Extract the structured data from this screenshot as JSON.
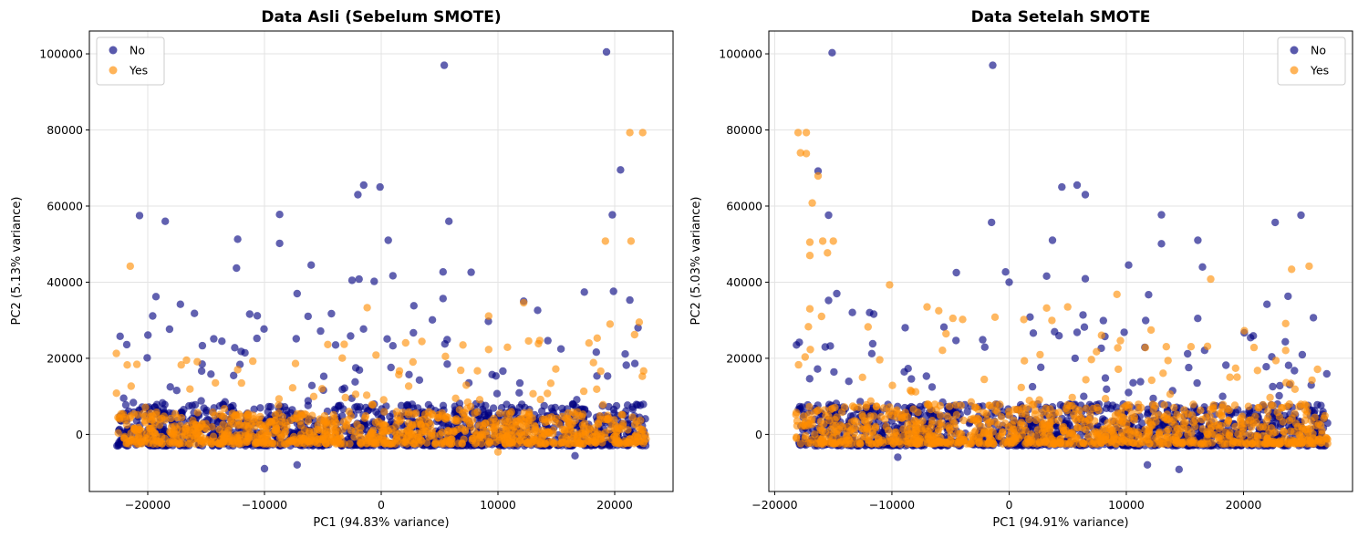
{
  "colors": {
    "No": "#000080",
    "Yes": "#ff8c00",
    "grid": "#e3e3e3",
    "axis": "#000000"
  },
  "chart_data": [
    {
      "type": "scatter",
      "title": "Data Asli (Sebelum SMOTE)",
      "xlabel": "PC1 (94.83% variance)",
      "ylabel": "PC2 (5.13% variance)",
      "xlim": [
        -25000,
        25000
      ],
      "ylim": [
        -15000,
        106000
      ],
      "xticks": [
        -20000,
        -10000,
        0,
        10000,
        20000
      ],
      "yticks": [
        0,
        20000,
        40000,
        60000,
        80000,
        100000
      ],
      "grid": true,
      "legend_position": "upper-left",
      "legend": [
        "No",
        "Yes"
      ],
      "series": [
        {
          "name": "No",
          "color": "#000080",
          "x_range": [
            -22700,
            22700
          ],
          "dense_band_y": [
            -3000,
            8000
          ],
          "outliers": [
            [
              19300,
              100500
            ],
            [
              5400,
              97000
            ],
            [
              20500,
              69500
            ],
            [
              -1500,
              65500
            ],
            [
              -100,
              65000
            ],
            [
              -2000,
              63000
            ],
            [
              5800,
              56000
            ],
            [
              -8700,
              57800
            ],
            [
              -20700,
              57500
            ],
            [
              -18500,
              56000
            ],
            [
              19800,
              57700
            ],
            [
              -12300,
              51300
            ],
            [
              -8700,
              50200
            ],
            [
              600,
              51000
            ],
            [
              -12400,
              43700
            ],
            [
              -6000,
              44500
            ],
            [
              7700,
              42600
            ],
            [
              5300,
              42700
            ],
            [
              -2500,
              40500
            ],
            [
              -1900,
              40800
            ],
            [
              -600,
              40200
            ],
            [
              1000,
              41700
            ],
            [
              -7200,
              37000
            ],
            [
              -19300,
              36200
            ],
            [
              17400,
              37400
            ],
            [
              19900,
              37600
            ],
            [
              21300,
              35300
            ],
            [
              12200,
              35000
            ],
            [
              5300,
              35700
            ],
            [
              2800,
              33800
            ],
            [
              -16000,
              31800
            ],
            [
              -17200,
              34200
            ],
            [
              13400,
              32600
            ],
            [
              22000,
              28000
            ],
            [
              -21800,
              23600
            ],
            [
              -12000,
              21800
            ],
            [
              1000,
              23300
            ],
            [
              -10000,
              -9000
            ],
            [
              -7200,
              -8000
            ],
            [
              16600,
              -5600
            ]
          ]
        },
        {
          "name": "Yes",
          "color": "#ff8c00",
          "x_range": [
            -22700,
            22700
          ],
          "dense_band_y": [
            -2500,
            6000
          ],
          "outliers": [
            [
              21300,
              79300
            ],
            [
              22400,
              79300
            ],
            [
              19200,
              50800
            ],
            [
              21400,
              50800
            ],
            [
              -21500,
              44200
            ],
            [
              19600,
              29000
            ],
            [
              22100,
              29500
            ],
            [
              21700,
              26200
            ],
            [
              18500,
              25300
            ],
            [
              17800,
              24000
            ],
            [
              -1200,
              33300
            ],
            [
              9200,
              31100
            ],
            [
              12200,
              34600
            ],
            [
              9200,
              22300
            ],
            [
              -12300,
              17000
            ],
            [
              5500,
              20500
            ],
            [
              10000,
              -4600
            ]
          ]
        }
      ]
    },
    {
      "type": "scatter",
      "title": "Data Setelah SMOTE",
      "xlabel": "PC1 (94.91% variance)",
      "ylabel": "PC2 (5.03% variance)",
      "xlim": [
        -20500,
        29300
      ],
      "ylim": [
        -15000,
        106000
      ],
      "xticks": [
        -20000,
        -10000,
        0,
        10000,
        20000
      ],
      "yticks": [
        0,
        20000,
        40000,
        60000,
        80000,
        100000
      ],
      "grid": true,
      "legend_position": "upper-right",
      "legend": [
        "No",
        "Yes"
      ],
      "series": [
        {
          "name": "No",
          "color": "#000080",
          "x_range": [
            -18200,
            27200
          ],
          "dense_band_y": [
            -3000,
            8000
          ],
          "outliers": [
            [
              -15100,
              100300
            ],
            [
              -1400,
              97000
            ],
            [
              -16300,
              69200
            ],
            [
              5800,
              65500
            ],
            [
              4500,
              65000
            ],
            [
              6500,
              63000
            ],
            [
              -15400,
              57600
            ],
            [
              13000,
              57700
            ],
            [
              24900,
              57600
            ],
            [
              -1500,
              55700
            ],
            [
              22700,
              55700
            ],
            [
              16100,
              51000
            ],
            [
              3700,
              51000
            ],
            [
              13000,
              50100
            ],
            [
              10200,
              44500
            ],
            [
              16500,
              44000
            ],
            [
              -4500,
              42500
            ],
            [
              -300,
              42700
            ],
            [
              3200,
              41600
            ],
            [
              6500,
              40900
            ],
            [
              11900,
              36700
            ],
            [
              23800,
              36300
            ],
            [
              -14700,
              37000
            ],
            [
              -15400,
              35200
            ],
            [
              0,
              40000
            ],
            [
              -11900,
              32000
            ],
            [
              22000,
              34200
            ],
            [
              -17900,
              24200
            ],
            [
              14500,
              -9200
            ],
            [
              11800,
              -8000
            ],
            [
              -9500,
              -6000
            ]
          ]
        },
        {
          "name": "Yes",
          "color": "#ff8c00",
          "x_range": [
            -18200,
            27200
          ],
          "dense_band_y": [
            -2500,
            8000
          ],
          "outliers": [
            [
              -18000,
              79300
            ],
            [
              -17300,
              79300
            ],
            [
              -17800,
              74000
            ],
            [
              -17300,
              73800
            ],
            [
              -16300,
              67900
            ],
            [
              -16800,
              60800
            ],
            [
              -15900,
              50800
            ],
            [
              -15000,
              50800
            ],
            [
              -17000,
              50500
            ],
            [
              -17000,
              47000
            ],
            [
              -15500,
              47700
            ],
            [
              -10200,
              39300
            ],
            [
              -7000,
              33500
            ],
            [
              -6000,
              32500
            ],
            [
              -4800,
              30500
            ],
            [
              3200,
              33200
            ],
            [
              5000,
              33500
            ],
            [
              9200,
              36800
            ],
            [
              17200,
              40800
            ],
            [
              25600,
              44200
            ],
            [
              24100,
              43400
            ],
            [
              -17000,
              33000
            ],
            [
              -16000,
              31000
            ]
          ]
        }
      ]
    }
  ]
}
